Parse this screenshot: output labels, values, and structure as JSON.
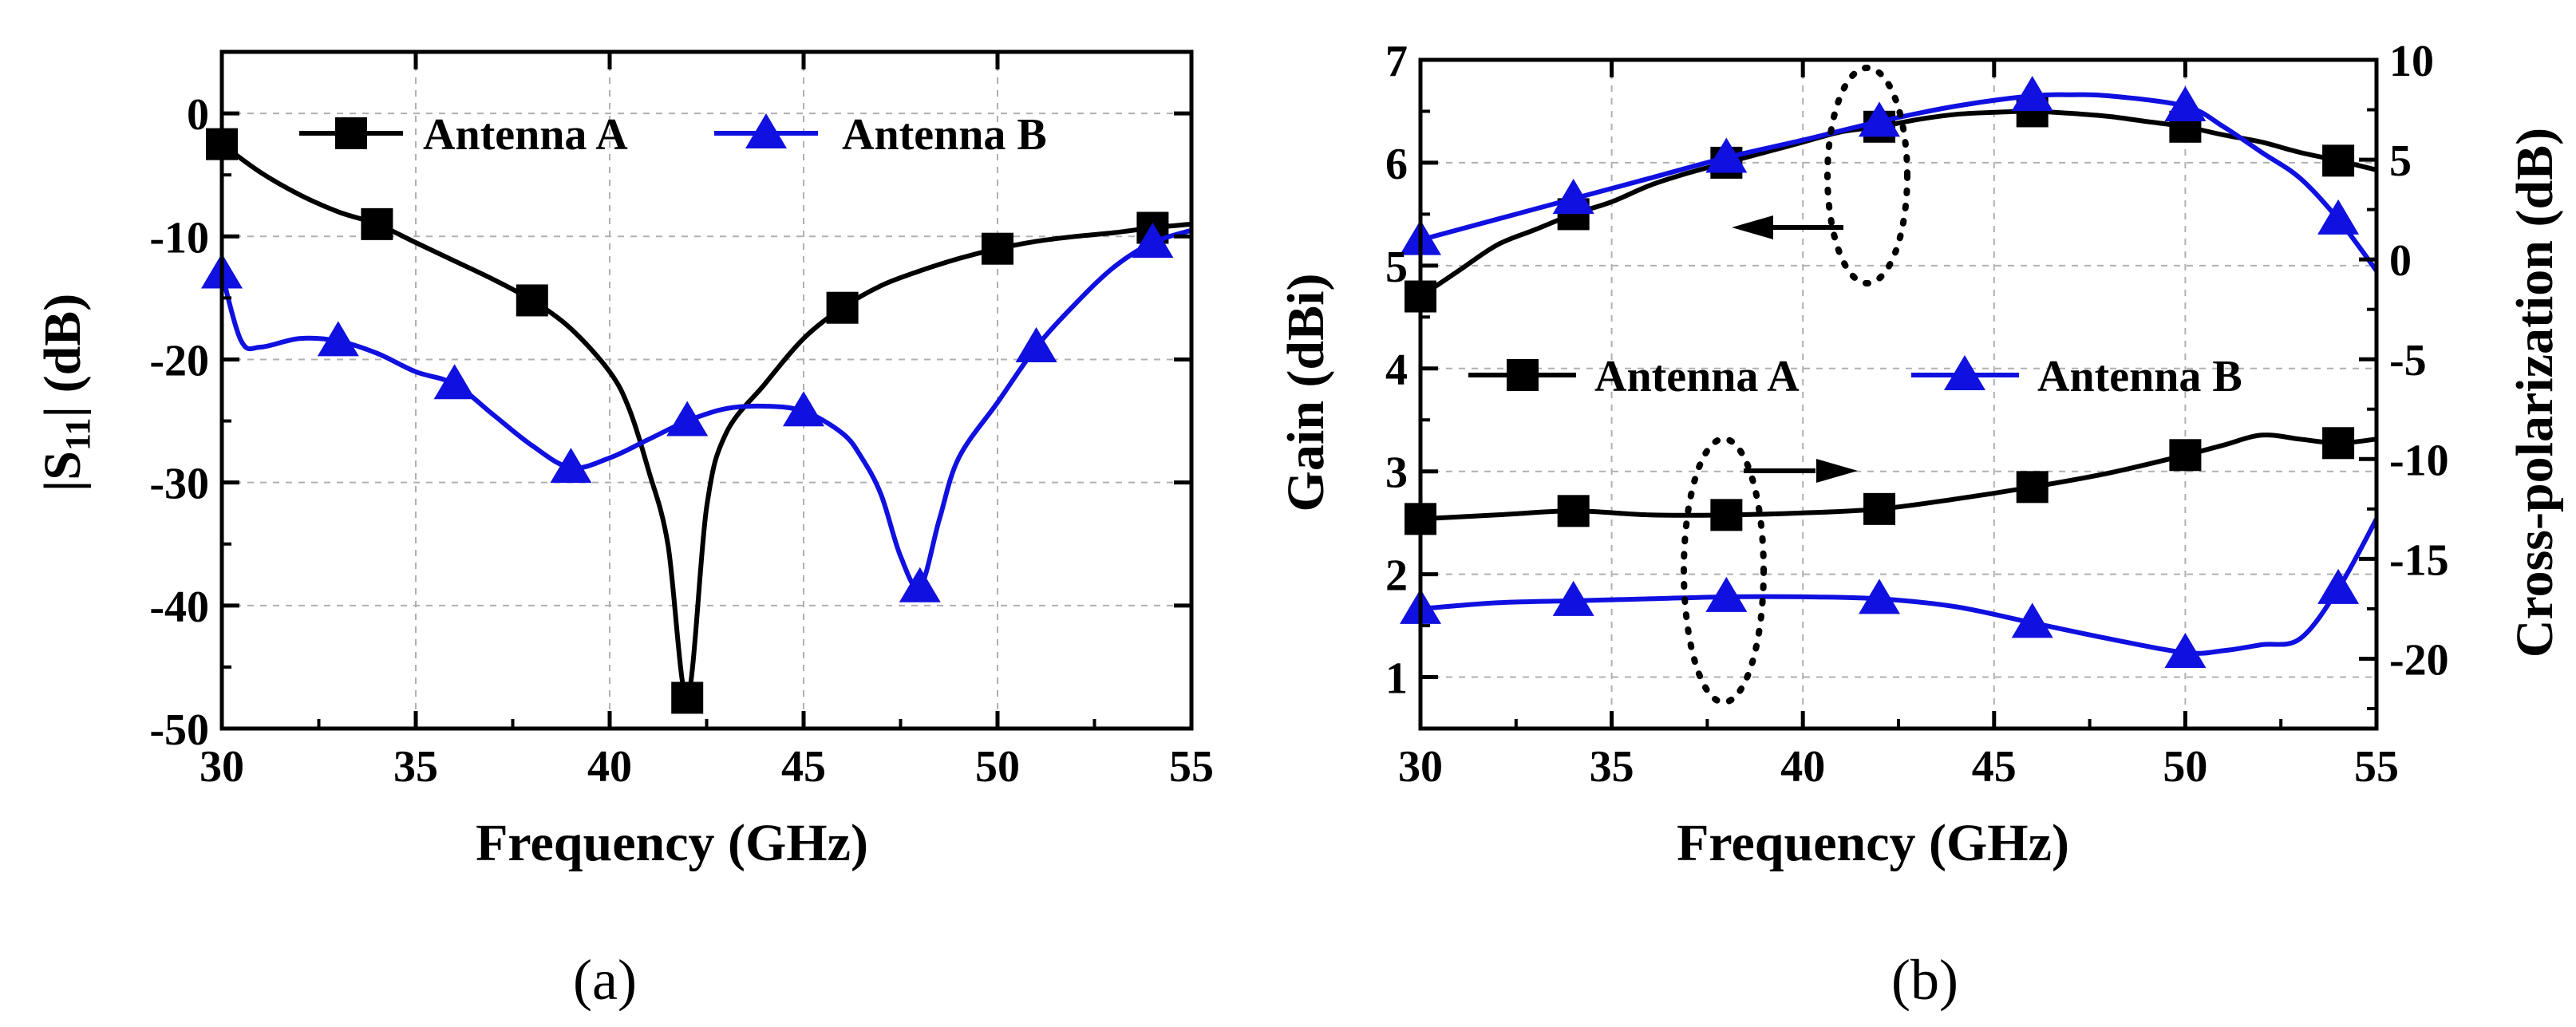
{
  "chart_data": [
    {
      "type": "line",
      "panel_label": "(a)",
      "xlabel": "Frequency (GHz)",
      "ylabel_main": "|S",
      "ylabel_sub": "11",
      "ylabel_tail": "| (dB)",
      "xlim": [
        30,
        55
      ],
      "ylim": [
        -50,
        5
      ],
      "xticks": [
        "30",
        "35",
        "40",
        "45",
        "50",
        "55"
      ],
      "yticks": [
        "0",
        "-10",
        "-20",
        "-30",
        "-40",
        "-50"
      ],
      "grid": true,
      "legend_position": "top",
      "series": [
        {
          "name": "Antenna A",
          "color": "#000000",
          "marker": "square",
          "x": [
            30,
            31,
            32,
            33,
            34,
            35,
            36,
            37,
            38,
            39,
            40,
            40.5,
            41,
            41.5,
            42,
            42.5,
            43,
            44,
            45,
            46,
            47,
            48,
            49,
            50,
            51,
            52,
            53,
            54,
            55
          ],
          "y": [
            -2.5,
            -4.8,
            -6.6,
            -8,
            -9,
            -10.5,
            -12,
            -13.5,
            -15.2,
            -17.5,
            -21,
            -24,
            -29,
            -35,
            -47.5,
            -32,
            -26,
            -22,
            -18.3,
            -15.8,
            -14,
            -12.8,
            -11.8,
            -11,
            -10.4,
            -10,
            -9.7,
            -9.3,
            -9
          ]
        },
        {
          "name": "Antenna B",
          "color": "#1010e0",
          "marker": "triangle",
          "x": [
            30,
            30.5,
            31,
            32,
            33,
            34,
            35,
            36,
            37,
            38,
            39,
            40,
            41,
            42,
            43,
            44,
            45,
            46,
            46.5,
            47,
            47.5,
            48,
            48.5,
            49,
            50,
            51,
            52,
            53,
            54,
            55
          ],
          "y": [
            -13,
            -18.5,
            -19,
            -18.3,
            -18.5,
            -19.5,
            -21,
            -22,
            -24.5,
            -27,
            -28.8,
            -28,
            -26.5,
            -25,
            -24,
            -23.8,
            -24.2,
            -26,
            -28,
            -31,
            -36,
            -38.5,
            -33,
            -28,
            -23.5,
            -19,
            -15.5,
            -12.5,
            -10.5,
            -9.5
          ]
        }
      ]
    },
    {
      "type": "line",
      "panel_label": "(b)",
      "xlabel": "Frequency (GHz)",
      "ylabel_left": "Gain (dBi)",
      "ylabel_right": "Cross-polarization (dB)",
      "xlim": [
        30,
        55
      ],
      "ylim_left": [
        0.5,
        7
      ],
      "ylim_right": [
        -23.5,
        10
      ],
      "xticks": [
        "30",
        "35",
        "40",
        "45",
        "50",
        "55"
      ],
      "yticks_left": [
        "1",
        "2",
        "3",
        "4",
        "5",
        "6",
        "7"
      ],
      "yticks_right": [
        "10",
        "5",
        "0",
        "-5",
        "-10",
        "-15",
        "-20"
      ],
      "grid": true,
      "legend_position": "center",
      "series": [
        {
          "name": "Antenna A",
          "axis": "left",
          "color": "#000000",
          "marker": "square",
          "x": [
            30,
            31,
            32,
            33,
            34,
            35,
            36,
            37,
            38,
            39,
            40,
            41,
            42,
            43,
            44,
            45,
            46,
            47,
            48,
            49,
            50,
            51,
            52,
            53,
            54,
            55
          ],
          "y": [
            4.7,
            4.95,
            5.2,
            5.35,
            5.5,
            5.62,
            5.78,
            5.9,
            6.0,
            6.1,
            6.2,
            6.3,
            6.35,
            6.42,
            6.47,
            6.49,
            6.5,
            6.48,
            6.45,
            6.4,
            6.35,
            6.27,
            6.2,
            6.1,
            6.02,
            5.93
          ]
        },
        {
          "name": "Antenna B",
          "axis": "left",
          "color": "#1010e0",
          "marker": "triangle",
          "x": [
            30,
            32,
            34,
            36,
            38,
            40,
            42,
            44,
            46,
            47,
            48,
            50,
            51,
            52,
            53,
            54,
            55
          ],
          "y": [
            5.25,
            5.45,
            5.65,
            5.85,
            6.05,
            6.22,
            6.4,
            6.55,
            6.65,
            6.66,
            6.65,
            6.55,
            6.35,
            6.1,
            5.85,
            5.45,
            4.95
          ]
        },
        {
          "name": "Antenna A",
          "axis": "right",
          "color": "#000000",
          "marker": "square",
          "x": [
            30,
            32,
            34,
            36,
            38,
            40,
            42,
            44,
            46,
            48,
            50,
            51,
            52,
            53,
            54,
            55
          ],
          "y": [
            -13.0,
            -12.8,
            -12.6,
            -12.8,
            -12.8,
            -12.7,
            -12.5,
            -12.0,
            -11.4,
            -10.7,
            -9.8,
            -9.3,
            -8.8,
            -9.0,
            -9.2,
            -9.0
          ]
        },
        {
          "name": "Antenna B",
          "axis": "right",
          "color": "#1010e0",
          "marker": "triangle",
          "x": [
            30,
            32,
            34,
            36,
            38,
            40,
            42,
            44,
            46,
            48,
            50,
            51,
            52,
            53,
            54,
            55
          ],
          "y": [
            -17.5,
            -17.2,
            -17.1,
            -17.0,
            -16.9,
            -16.9,
            -17.0,
            -17.4,
            -18.2,
            -19.0,
            -19.7,
            -19.6,
            -19.3,
            -19.0,
            -16.5,
            -13.0
          ]
        }
      ]
    }
  ],
  "legend": {
    "a_label": "Antenna A",
    "b_label": "Antenna B"
  },
  "annotations": {
    "left_arrow_text": "",
    "right_arrow_text": ""
  }
}
